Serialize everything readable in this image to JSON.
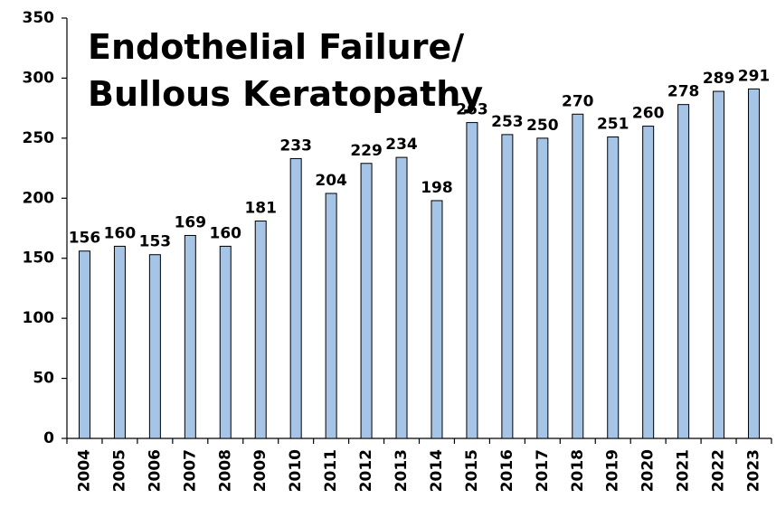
{
  "chart_data": {
    "type": "bar",
    "title": [
      "Endothelial Failure/",
      "Bullous Keratopathy"
    ],
    "categories": [
      "2004",
      "2005",
      "2006",
      "2007",
      "2008",
      "2009",
      "2010",
      "2011",
      "2012",
      "2013",
      "2014",
      "2015",
      "2016",
      "2017",
      "2018",
      "2019",
      "2020",
      "2021",
      "2022",
      "2023"
    ],
    "values": [
      156,
      160,
      153,
      169,
      160,
      181,
      233,
      204,
      229,
      234,
      198,
      263,
      253,
      250,
      270,
      251,
      260,
      278,
      289,
      291
    ],
    "color": "#a5c4e6",
    "ylim": [
      0,
      350
    ],
    "yticks": [
      0,
      50,
      100,
      150,
      200,
      250,
      300,
      350
    ],
    "grid": false
  }
}
